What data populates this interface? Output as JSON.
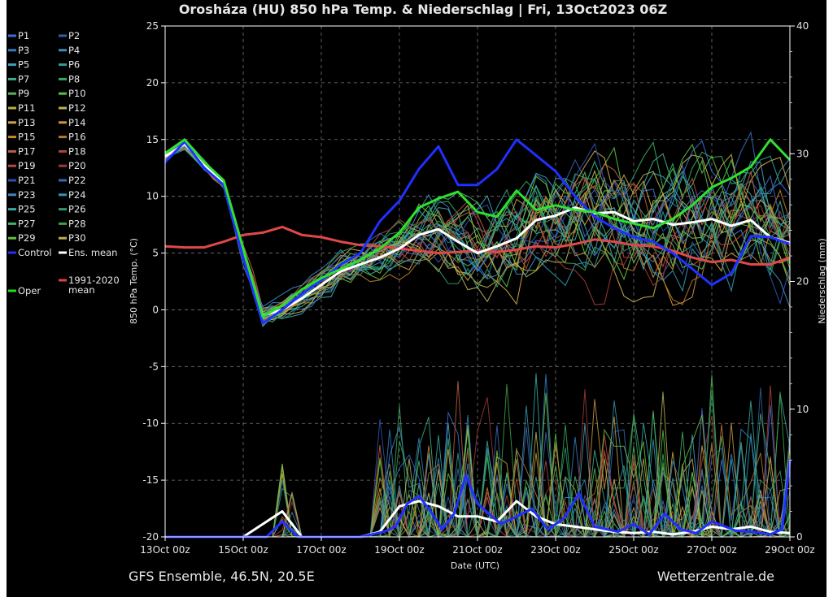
{
  "page": {
    "footer_left": "GFS Ensemble, 46.5N, 20.5E",
    "footer_right": "Wetterzentrale.de"
  },
  "chart_data": {
    "type": "line",
    "title": "Orosháza  (HU)  850 hPa Temp. & Niederschlag | Fri, 13Oct2023 06Z",
    "xlabel": "Date (UTC)",
    "ylabel": "850 hPa Temp. (°C)",
    "y2label": "Niederschlag (mm)",
    "xlim": [
      0,
      16
    ],
    "ylim": [
      -20,
      25
    ],
    "y2lim": [
      0,
      40
    ],
    "x_ticks": [
      {
        "x": 0,
        "label": "13Oct 00z"
      },
      {
        "x": 2,
        "label": "15Oct 00z"
      },
      {
        "x": 4,
        "label": "17Oct 00z"
      },
      {
        "x": 6,
        "label": "19Oct 00z"
      },
      {
        "x": 8,
        "label": "21Oct 00z"
      },
      {
        "x": 10,
        "label": "23Oct 00z"
      },
      {
        "x": 12,
        "label": "25Oct 00z"
      },
      {
        "x": 14,
        "label": "27Oct 00z"
      },
      {
        "x": 16,
        "label": "29Oct 00z"
      }
    ],
    "y_ticks": [
      25,
      20,
      15,
      10,
      5,
      0,
      -5,
      -10,
      -15,
      -20
    ],
    "y2_ticks": [
      40,
      30,
      20,
      10,
      0
    ],
    "grid": true,
    "legend_position": "left",
    "legend": [
      {
        "label": "P1",
        "color": "#3a6fd8"
      },
      {
        "label": "P2",
        "color": "#2f5fa8"
      },
      {
        "label": "P3",
        "color": "#2f7fc0"
      },
      {
        "label": "P4",
        "color": "#3f8fb0"
      },
      {
        "label": "P5",
        "color": "#3fa0b8"
      },
      {
        "label": "P6",
        "color": "#2f9f90"
      },
      {
        "label": "P7",
        "color": "#3fae88"
      },
      {
        "label": "P8",
        "color": "#36a860"
      },
      {
        "label": "P9",
        "color": "#4fb84f"
      },
      {
        "label": "P10",
        "color": "#58c040"
      },
      {
        "label": "P11",
        "color": "#b0b048"
      },
      {
        "label": "P12",
        "color": "#c0b050"
      },
      {
        "label": "P13",
        "color": "#c8a848"
      },
      {
        "label": "P14",
        "color": "#c89840"
      },
      {
        "label": "P15",
        "color": "#c88838"
      },
      {
        "label": "P16",
        "color": "#b87830"
      },
      {
        "label": "P17",
        "color": "#b86040"
      },
      {
        "label": "P18",
        "color": "#a84838"
      },
      {
        "label": "P19",
        "color": "#b84848"
      },
      {
        "label": "P20",
        "color": "#a03838"
      },
      {
        "label": "P21",
        "color": "#3050b0"
      },
      {
        "label": "P22",
        "color": "#3868b8"
      },
      {
        "label": "P23",
        "color": "#3a88c8"
      },
      {
        "label": "P24",
        "color": "#2f98b0"
      },
      {
        "label": "P25",
        "color": "#38a8a0"
      },
      {
        "label": "P26",
        "color": "#2f9870"
      },
      {
        "label": "P27",
        "color": "#48b068"
      },
      {
        "label": "P28",
        "color": "#40a048"
      },
      {
        "label": "P29",
        "color": "#68c040"
      },
      {
        "label": "P30",
        "color": "#b8b050"
      },
      {
        "label": "Control",
        "color": "#2030ff"
      },
      {
        "label": "Ens. mean",
        "color": "#ffffff"
      },
      {
        "label": "1991-2020 mean",
        "color": "#e04040"
      },
      {
        "label": "Oper",
        "color": "#20e020"
      }
    ],
    "temp_series": [
      {
        "name": "1991-2020 mean",
        "color": "#e04848",
        "width": 3,
        "x": [
          0,
          0.5,
          1,
          1.5,
          2,
          2.5,
          3,
          3.5,
          4,
          4.5,
          5,
          5.5,
          6,
          6.5,
          7,
          7.5,
          8,
          8.5,
          9,
          9.5,
          10,
          10.5,
          11,
          11.5,
          12,
          12.5,
          13,
          13.5,
          14,
          14.5,
          15,
          15.5,
          16
        ],
        "y": [
          5.6,
          5.5,
          5.5,
          6.0,
          6.6,
          6.8,
          7.3,
          6.6,
          6.4,
          6.0,
          5.7,
          5.6,
          5.4,
          5.2,
          5.0,
          5.1,
          5.2,
          5.1,
          5.3,
          5.6,
          5.5,
          5.8,
          6.2,
          6.0,
          5.7,
          5.6,
          5.2,
          4.6,
          4.2,
          4.4,
          4.0,
          4.0,
          4.6
        ]
      },
      {
        "name": "Ens. mean",
        "color": "#ffffff",
        "width": 3,
        "x": [
          0,
          0.5,
          1,
          1.5,
          2,
          2.5,
          3,
          3.5,
          4,
          4.5,
          5,
          5.5,
          6,
          6.5,
          7,
          7.5,
          8,
          8.5,
          9,
          9.5,
          10,
          10.5,
          11,
          11.5,
          12,
          12.5,
          13,
          13.5,
          14,
          14.5,
          15,
          15.5,
          16
        ],
        "y": [
          13.5,
          14.6,
          12.8,
          11.2,
          5.0,
          -0.5,
          0.0,
          1.0,
          2.2,
          3.4,
          4.0,
          4.6,
          5.4,
          6.6,
          7.1,
          6.0,
          5.0,
          5.6,
          6.3,
          7.9,
          8.3,
          9.0,
          8.5,
          8.6,
          7.8,
          8.0,
          7.5,
          7.7,
          8.0,
          7.4,
          7.9,
          6.4,
          5.9
        ]
      },
      {
        "name": "Control",
        "color": "#2030ff",
        "width": 3,
        "x": [
          0,
          0.5,
          1,
          1.5,
          2,
          2.5,
          3,
          3.5,
          4,
          4.5,
          5,
          5.5,
          6,
          6.5,
          7,
          7.5,
          8,
          8.5,
          9,
          9.5,
          10,
          10.5,
          11,
          11.5,
          12,
          12.5,
          13,
          13.5,
          14,
          14.5,
          15,
          15.5,
          16
        ],
        "y": [
          13.0,
          14.8,
          12.5,
          11.0,
          4.6,
          -1.2,
          0.0,
          1.4,
          2.6,
          4.0,
          5.0,
          7.8,
          9.6,
          12.4,
          14.4,
          11.0,
          11.0,
          12.4,
          15.0,
          13.6,
          12.2,
          10.0,
          8.2,
          7.2,
          6.4,
          6.0,
          5.0,
          3.6,
          2.2,
          3.2,
          6.5,
          6.4,
          5.8
        ]
      },
      {
        "name": "Oper",
        "color": "#30e030",
        "width": 3,
        "x": [
          0,
          0.5,
          1,
          1.5,
          2,
          2.5,
          3,
          3.5,
          4,
          4.5,
          5,
          5.5,
          6,
          6.5,
          7,
          7.5,
          8,
          8.5,
          9,
          9.5,
          10,
          10.5,
          11,
          11.5,
          12,
          12.5,
          13,
          13.5,
          14,
          14.5,
          15,
          15.5,
          16
        ],
        "y": [
          13.8,
          15.0,
          13.0,
          11.4,
          5.4,
          -0.6,
          0.4,
          1.8,
          2.8,
          3.6,
          4.4,
          5.4,
          6.8,
          9.0,
          9.8,
          10.4,
          8.6,
          8.2,
          10.5,
          8.8,
          9.2,
          8.8,
          8.6,
          8.0,
          7.6,
          7.2,
          8.0,
          9.2,
          10.8,
          11.6,
          12.6,
          15.0,
          13.2
        ]
      }
    ],
    "precip_series": [
      {
        "name": "Ens. mean precip",
        "color": "#ffffff",
        "width": 3,
        "x": [
          0,
          1,
          2,
          3,
          3.5,
          4,
          4.5,
          5,
          5.5,
          6,
          6.5,
          7,
          7.5,
          8,
          8.5,
          9,
          9.5,
          10,
          10.5,
          11,
          11.5,
          12,
          12.5,
          13,
          13.5,
          14,
          14.5,
          15,
          15.5,
          16
        ],
        "y": [
          0,
          0,
          0,
          2.0,
          0,
          0,
          0,
          0,
          0.4,
          2.4,
          2.8,
          2.4,
          1.6,
          1.6,
          1.2,
          2.8,
          1.6,
          1.0,
          0.8,
          0.6,
          0.4,
          0.3,
          0.4,
          0.2,
          0.4,
          0.8,
          0.6,
          0.8,
          0.4,
          0.3
        ]
      },
      {
        "name": "Control precip",
        "color": "#2030ff",
        "width": 3,
        "x": [
          0,
          1,
          2,
          2.6,
          3,
          3.4,
          4,
          5,
          5.6,
          5.9,
          6.2,
          6.5,
          6.8,
          7.1,
          7.4,
          7.7,
          8,
          8.6,
          9,
          9.4,
          9.8,
          10.2,
          10.6,
          11,
          11.6,
          12,
          12.4,
          12.8,
          13.2,
          13.6,
          14,
          14.6,
          15,
          15.5,
          15.8,
          16
        ],
        "y": [
          0,
          0,
          0,
          0,
          1.2,
          0,
          0,
          0,
          0.4,
          0.8,
          2.6,
          3.2,
          2.0,
          0.6,
          1.8,
          4.8,
          2.6,
          1.0,
          1.6,
          2.2,
          0.6,
          1.4,
          3.4,
          0.8,
          0.4,
          1.0,
          0.2,
          1.8,
          0.6,
          0.3,
          1.2,
          0.5,
          0.4,
          0.2,
          0.6,
          6.0
        ]
      }
    ],
    "note": "Ensemble members P1–P30 shown as a spaghetti of thin lines spreading roughly between -3 and 18 °C after 17Oct, with precipitation spikes up to about 15 mm between 18Oct and 29Oct."
  }
}
